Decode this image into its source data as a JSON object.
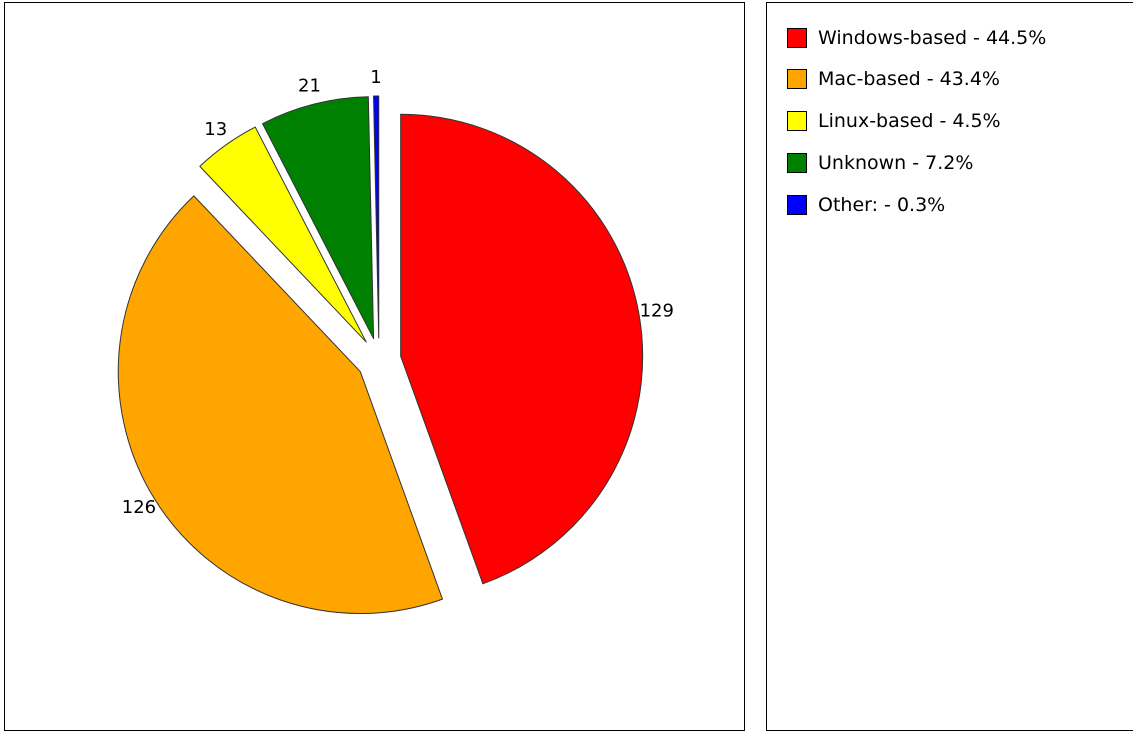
{
  "chart_data": {
    "type": "pie",
    "title": "",
    "slices": [
      {
        "label": "Windows-based",
        "value": 129,
        "value_label": "129",
        "legend": "Windows-based - 44.5%",
        "color": "#ff0000",
        "exploded": true
      },
      {
        "label": "Mac-based",
        "value": 126,
        "value_label": "126",
        "legend": "Mac-based - 43.4%",
        "color": "#ffa500",
        "exploded": true
      },
      {
        "label": "Linux-based",
        "value": 13,
        "value_label": "13",
        "legend": "Linux-based - 4.5%",
        "color": "#ffff00",
        "exploded": true
      },
      {
        "label": "Unknown",
        "value": 21,
        "value_label": "21",
        "legend": "Unknown - 7.2%",
        "color": "#008000",
        "exploded": true
      },
      {
        "label": "Other:",
        "value": 1,
        "value_label": "1",
        "legend": "Other: - 0.3%",
        "color": "#0000ff",
        "exploded": true
      }
    ],
    "legend_position": "right"
  }
}
